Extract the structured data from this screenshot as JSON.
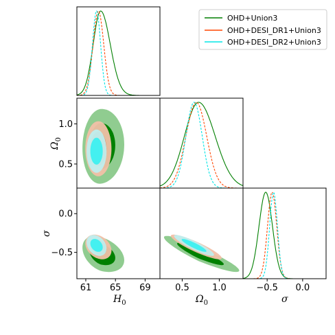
{
  "chart_data": {
    "type": "corner",
    "parameters": [
      {
        "key": "H0",
        "label": "H",
        "sub": "0",
        "range": [
          59.8,
          71.0
        ],
        "ticks": [
          61,
          65,
          69
        ]
      },
      {
        "key": "Omega0",
        "label": "Ω",
        "sub": "0",
        "range": [
          0.2,
          1.32
        ],
        "ticks": [
          0.5,
          1.0
        ]
      },
      {
        "key": "sigma",
        "label": "σ",
        "sub": "",
        "range": [
          -0.84,
          0.33
        ],
        "ticks": [
          -0.5,
          0.0
        ]
      }
    ],
    "tick_labels": {
      "H0": [
        "61",
        "65",
        "69"
      ],
      "Omega0": [
        "0.5",
        "1.0"
      ],
      "Omega0_y": [
        "0.5",
        "1.0"
      ],
      "sigma": [
        "−0.5",
        "0.0"
      ],
      "sigma_y": [
        "−0.5",
        "0.0"
      ]
    },
    "legend": {
      "placement": "top-right",
      "entries": [
        "OHD+Union3",
        "OHD+DESI_DR1+Union3",
        "OHD+DESI_DR2+Union3"
      ]
    },
    "series": [
      {
        "name": "OHD+Union3",
        "color": "#007f00",
        "fill_outer": "#8ac98a",
        "fill_inner": "#008000",
        "line_style": "solid",
        "mean": {
          "H0": 63.0,
          "Omega0": 0.72,
          "sigma": -0.52
        },
        "std": {
          "H0": 1.0,
          "Omega0": 0.19,
          "sigma": 0.095
        },
        "skew": {
          "H0": 0.5,
          "Omega0": 0.3,
          "sigma": 0.0
        },
        "corr": {
          "H0_Omega0": 0.05,
          "H0_sigma": -0.35,
          "Omega0_sigma": -0.92
        }
      },
      {
        "name": "OHD+DESI_DR1+Union3",
        "color": "#ff4500",
        "fill_outer": "#f2c0a8",
        "fill_inner": "#e07850",
        "line_style": "dashed",
        "mean": {
          "H0": 62.7,
          "Omega0": 0.69,
          "sigma": -0.43
        },
        "std": {
          "H0": 0.72,
          "Omega0": 0.14,
          "sigma": 0.065
        },
        "skew": {
          "H0": 0.0,
          "Omega0": 0.0,
          "sigma": 0.0
        },
        "corr": {
          "H0_Omega0": 0.0,
          "H0_sigma": -0.3,
          "Omega0_sigma": -0.9
        }
      },
      {
        "name": "OHD+DESI_DR2+Union3",
        "color": "#00e5e5",
        "fill_outer": "#bfeeee",
        "fill_inner": "#44f0f0",
        "line_style": "dashed",
        "mean": {
          "H0": 62.45,
          "Omega0": 0.66,
          "sigma": -0.41
        },
        "std": {
          "H0": 0.55,
          "Omega0": 0.11,
          "sigma": 0.055
        },
        "skew": {
          "H0": 0.0,
          "Omega0": 0.0,
          "sigma": 0.0
        },
        "corr": {
          "H0_Omega0": 0.0,
          "H0_sigma": -0.3,
          "Omega0_sigma": -0.9
        }
      }
    ]
  }
}
